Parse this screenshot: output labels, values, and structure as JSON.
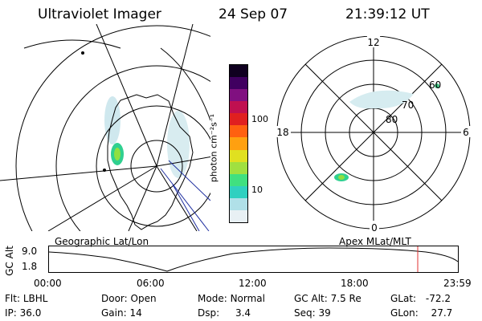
{
  "header": {
    "title": "Ultraviolet Imager",
    "date": "24 Sep 07",
    "time": "21:39:12 UT"
  },
  "colorbar": {
    "unit_label": "photon cm⁻²s⁻¹",
    "ticks": [
      "100",
      "10"
    ],
    "colors": [
      "#e8f0f4",
      "#b0e0e8",
      "#30d0c0",
      "#40e080",
      "#a0e040",
      "#e0e020",
      "#ffa010",
      "#ff6010",
      "#e02020",
      "#c01050",
      "#801080",
      "#400060",
      "#100020"
    ]
  },
  "geo_map": {
    "caption": "Geographic Lat/Lon"
  },
  "polar_map": {
    "caption": "Apex MLat/MLT",
    "mlt_labels": {
      "top": "12",
      "left": "18",
      "right": "6",
      "bottom": "0"
    },
    "lat_labels": [
      "80",
      "70",
      "60"
    ]
  },
  "altitude_plot": {
    "ylabel": "GC Alt",
    "ytick_top": "9.0",
    "ytick_bottom": "1.8",
    "x_ticks": [
      "00:00",
      "06:00",
      "12:00",
      "18:00",
      "23:59"
    ],
    "marker_color": "#e03030"
  },
  "info": {
    "flt_label": "Flt:",
    "flt_value": "LBHL",
    "ip_label": "IP:",
    "ip_value": "36.0",
    "door_label": "Door:",
    "door_value": "Open",
    "gain_label": "Gain:",
    "gain_value": "14",
    "mode_label": "Mode:",
    "mode_value": "Normal",
    "dsp_label": "Dsp:",
    "dsp_value": "3.4",
    "gcalt_label": "GC Alt:",
    "gcalt_value": "7.5 Re",
    "seq_label": "Seq:",
    "seq_value": "39",
    "glat_label": "GLat:",
    "glat_value": "-72.2",
    "glon_label": "GLon:",
    "glon_value": "27.7"
  }
}
